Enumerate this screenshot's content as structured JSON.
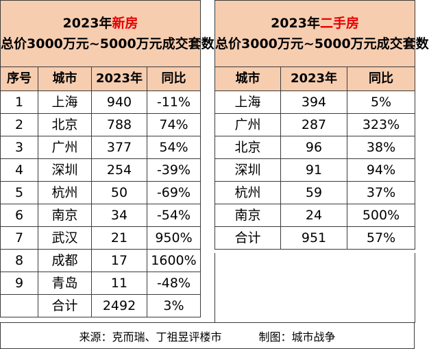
{
  "left": {
    "title_year": "2023年",
    "title_highlight": "新房",
    "subtitle": "总价3000万元~5000万元成交套数",
    "headers": [
      "序号",
      "城市",
      "2023年",
      "同比"
    ],
    "rows": [
      {
        "idx": "1",
        "city": "上海",
        "count": "940",
        "yoy": "-11%"
      },
      {
        "idx": "2",
        "city": "北京",
        "count": "788",
        "yoy": "74%"
      },
      {
        "idx": "3",
        "city": "广州",
        "count": "377",
        "yoy": "54%"
      },
      {
        "idx": "4",
        "city": "深圳",
        "count": "254",
        "yoy": "-39%"
      },
      {
        "idx": "5",
        "city": "杭州",
        "count": "50",
        "yoy": "-69%"
      },
      {
        "idx": "6",
        "city": "南京",
        "count": "34",
        "yoy": "-54%"
      },
      {
        "idx": "7",
        "city": "武汉",
        "count": "21",
        "yoy": "950%"
      },
      {
        "idx": "8",
        "city": "成都",
        "count": "17",
        "yoy": "1600%"
      },
      {
        "idx": "9",
        "city": "青岛",
        "count": "11",
        "yoy": "-48%"
      }
    ],
    "total": {
      "idx": "",
      "city": "合计",
      "count": "2492",
      "yoy": "3%"
    }
  },
  "right": {
    "title_year": "2023年",
    "title_highlight": "二手房",
    "subtitle": "总价3000万元~5000万元成交套数",
    "headers": [
      "城市",
      "2023年",
      "同比"
    ],
    "rows": [
      {
        "city": "上海",
        "count": "394",
        "yoy": "5%"
      },
      {
        "city": "广州",
        "count": "287",
        "yoy": "323%"
      },
      {
        "city": "北京",
        "count": "96",
        "yoy": "38%"
      },
      {
        "city": "深圳",
        "count": "91",
        "yoy": "94%"
      },
      {
        "city": "杭州",
        "count": "59",
        "yoy": "37%"
      },
      {
        "city": "南京",
        "count": "24",
        "yoy": "500%"
      }
    ],
    "total": {
      "city": "合计",
      "count": "951",
      "yoy": "57%"
    }
  },
  "footer": {
    "source": "来源：克而瑞、丁祖昱评楼市",
    "credit": "制图：城市战争"
  },
  "colors": {
    "header_fill": "#f7cdb0",
    "highlight_text": "#e60000"
  }
}
